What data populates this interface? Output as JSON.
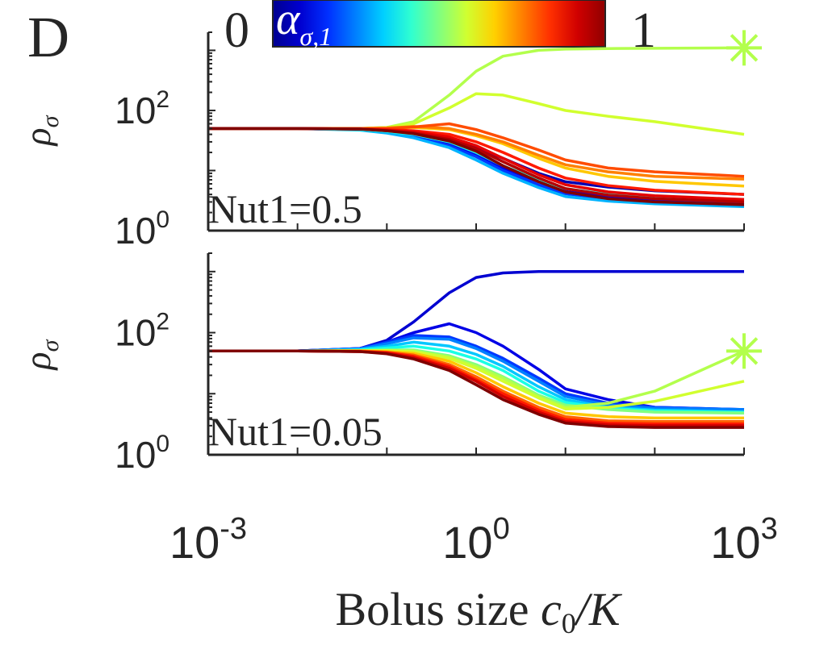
{
  "panel_label": "D",
  "colorbar": {
    "label_main": "α",
    "label_sub": "σ,1",
    "min_label": "0",
    "max_label": "1",
    "stops": [
      "#00008f",
      "#0000d0",
      "#0030ff",
      "#0080ff",
      "#00d0ff",
      "#30ffd0",
      "#80ff80",
      "#d0ff30",
      "#ffd000",
      "#ff8000",
      "#ff3000",
      "#d00000",
      "#8f0000"
    ]
  },
  "xaxis": {
    "label_text": "Bolus size ",
    "label_math": "c",
    "label_sub": "0",
    "label_rest": "/K",
    "tick_labels": [
      {
        "base": "10",
        "exp": "-3"
      },
      {
        "base": "10",
        "exp": "0"
      },
      {
        "base": "10",
        "exp": "3"
      }
    ]
  },
  "chart_data": [
    {
      "type": "line",
      "panel": "top",
      "annotation": "Nut1=0.5",
      "ylabel_main": "ρ",
      "ylabel_sub": "σ",
      "xscale": "log",
      "yscale": "log",
      "xlim": [
        0.001,
        1000
      ],
      "ylim": [
        1,
        2000
      ],
      "y_tick_labels": [
        {
          "base": "10",
          "exp": "0"
        },
        {
          "base": "10",
          "exp": "2"
        }
      ],
      "x": [
        0.001,
        0.01,
        0.05,
        0.1,
        0.2,
        0.5,
        1,
        2,
        5,
        10,
        30,
        100,
        1000
      ],
      "series": [
        {
          "alpha": 0.55,
          "values": [
            50,
            50,
            50,
            52,
            65,
            180,
            450,
            800,
            1000,
            1050,
            1070,
            1080,
            1100
          ],
          "star": true
        },
        {
          "alpha": 0.58,
          "values": [
            50,
            50,
            50,
            52,
            60,
            110,
            190,
            180,
            130,
            100,
            80,
            65,
            40
          ]
        },
        {
          "alpha": 0.05,
          "values": [
            50,
            50,
            49,
            47,
            43,
            34,
            24,
            16,
            9,
            6.5,
            5.3,
            4.6,
            4
          ]
        },
        {
          "alpha": 0.1,
          "values": [
            50,
            50,
            48,
            44,
            38,
            27,
            18,
            11,
            6.5,
            4.5,
            3.6,
            3.2,
            3
          ]
        },
        {
          "alpha": 0.18,
          "values": [
            50,
            50,
            48,
            44,
            37,
            26,
            17,
            10,
            5.8,
            4.1,
            3.4,
            3.0,
            2.8
          ]
        },
        {
          "alpha": 0.3,
          "values": [
            50,
            50,
            47,
            42,
            35,
            24,
            15,
            9,
            5.2,
            3.7,
            3.1,
            2.8,
            2.5
          ]
        },
        {
          "alpha": 0.4,
          "values": [
            50,
            50,
            48,
            45,
            40,
            30,
            20,
            12,
            7,
            5,
            4,
            3.5,
            3.2
          ]
        },
        {
          "alpha": 0.68,
          "values": [
            50,
            50,
            50,
            51,
            52,
            48,
            38,
            28,
            16,
            11,
            8,
            6.6,
            5.5
          ]
        },
        {
          "alpha": 0.75,
          "values": [
            50,
            50,
            50,
            51,
            54,
            50,
            40,
            30,
            18,
            12.5,
            9.5,
            8,
            7.2
          ]
        },
        {
          "alpha": 0.8,
          "values": [
            50,
            50,
            50,
            50,
            53,
            60,
            48,
            35,
            22,
            15,
            11,
            9.5,
            8
          ]
        },
        {
          "alpha": 0.85,
          "values": [
            50,
            50,
            49,
            48,
            46,
            40,
            30,
            20,
            11,
            7.5,
            5.6,
            4.7,
            4
          ]
        },
        {
          "alpha": 0.9,
          "values": [
            50,
            50,
            49,
            47,
            44,
            36,
            26,
            16,
            8.5,
            5.8,
            4.4,
            3.8,
            3.3
          ]
        },
        {
          "alpha": 0.95,
          "values": [
            50,
            50,
            49,
            46,
            42,
            33,
            23,
            14,
            7.5,
            5,
            3.9,
            3.4,
            3.0
          ]
        },
        {
          "alpha": 1.0,
          "values": [
            50,
            50,
            49,
            46,
            41,
            31,
            21,
            12,
            6.5,
            4.4,
            3.4,
            3.0,
            2.7
          ]
        }
      ]
    },
    {
      "type": "line",
      "panel": "bottom",
      "annotation": "Nut1=0.05",
      "ylabel_main": "ρ",
      "ylabel_sub": "σ",
      "xscale": "log",
      "yscale": "log",
      "xlim": [
        0.001,
        1000
      ],
      "ylim": [
        1,
        2000
      ],
      "y_tick_labels": [
        {
          "base": "10",
          "exp": "0"
        },
        {
          "base": "10",
          "exp": "2"
        }
      ],
      "x": [
        0.001,
        0.01,
        0.05,
        0.1,
        0.2,
        0.5,
        1,
        2,
        5,
        10,
        30,
        100,
        1000
      ],
      "series": [
        {
          "alpha": 0.08,
          "values": [
            50,
            50,
            55,
            75,
            150,
            450,
            800,
            950,
            1000,
            1000,
            1000,
            1000,
            1000
          ]
        },
        {
          "alpha": 0.1,
          "values": [
            50,
            50,
            55,
            70,
            100,
            140,
            100,
            60,
            25,
            12,
            8,
            6,
            5.5
          ]
        },
        {
          "alpha": 0.18,
          "values": [
            50,
            50,
            55,
            70,
            90,
            85,
            60,
            38,
            18,
            10,
            7,
            6,
            5.5
          ]
        },
        {
          "alpha": 0.25,
          "values": [
            50,
            50,
            54,
            66,
            82,
            78,
            55,
            34,
            16,
            9,
            6.5,
            5.8,
            5.5
          ]
        },
        {
          "alpha": 0.32,
          "values": [
            50,
            50,
            53,
            60,
            70,
            60,
            44,
            28,
            13,
            8,
            6,
            5.4,
            5
          ]
        },
        {
          "alpha": 0.4,
          "values": [
            50,
            50,
            52,
            56,
            60,
            50,
            37,
            24,
            11,
            7.2,
            5.8,
            5.2,
            5
          ]
        },
        {
          "alpha": 0.5,
          "values": [
            50,
            50,
            51,
            52,
            52,
            42,
            30,
            19,
            9.5,
            6.5,
            5.5,
            5,
            4.8
          ]
        },
        {
          "alpha": 0.55,
          "values": [
            50,
            50,
            51,
            51,
            50,
            40,
            28,
            18,
            9,
            6,
            7,
            11,
            50
          ],
          "star": true
        },
        {
          "alpha": 0.58,
          "values": [
            50,
            50,
            51,
            51,
            49,
            38,
            26,
            16,
            8.5,
            5.6,
            6,
            7.5,
            16
          ]
        },
        {
          "alpha": 0.68,
          "values": [
            50,
            50,
            50,
            49,
            46,
            34,
            22,
            13,
            7,
            4.8,
            4.2,
            4,
            4
          ]
        },
        {
          "alpha": 0.78,
          "values": [
            50,
            50,
            50,
            48,
            43,
            30,
            19,
            11,
            6,
            4.2,
            3.6,
            3.5,
            3.5
          ]
        },
        {
          "alpha": 0.85,
          "values": [
            50,
            50,
            49,
            47,
            41,
            28,
            17,
            10,
            5.4,
            3.8,
            3.3,
            3.2,
            3.2
          ]
        },
        {
          "alpha": 0.92,
          "values": [
            50,
            50,
            49,
            46,
            39,
            26,
            16,
            9,
            5,
            3.5,
            3.1,
            3.0,
            3.0
          ]
        },
        {
          "alpha": 1.0,
          "values": [
            50,
            50,
            49,
            45,
            37,
            24,
            14,
            8,
            4.6,
            3.3,
            2.9,
            2.8,
            2.8
          ]
        }
      ]
    }
  ]
}
